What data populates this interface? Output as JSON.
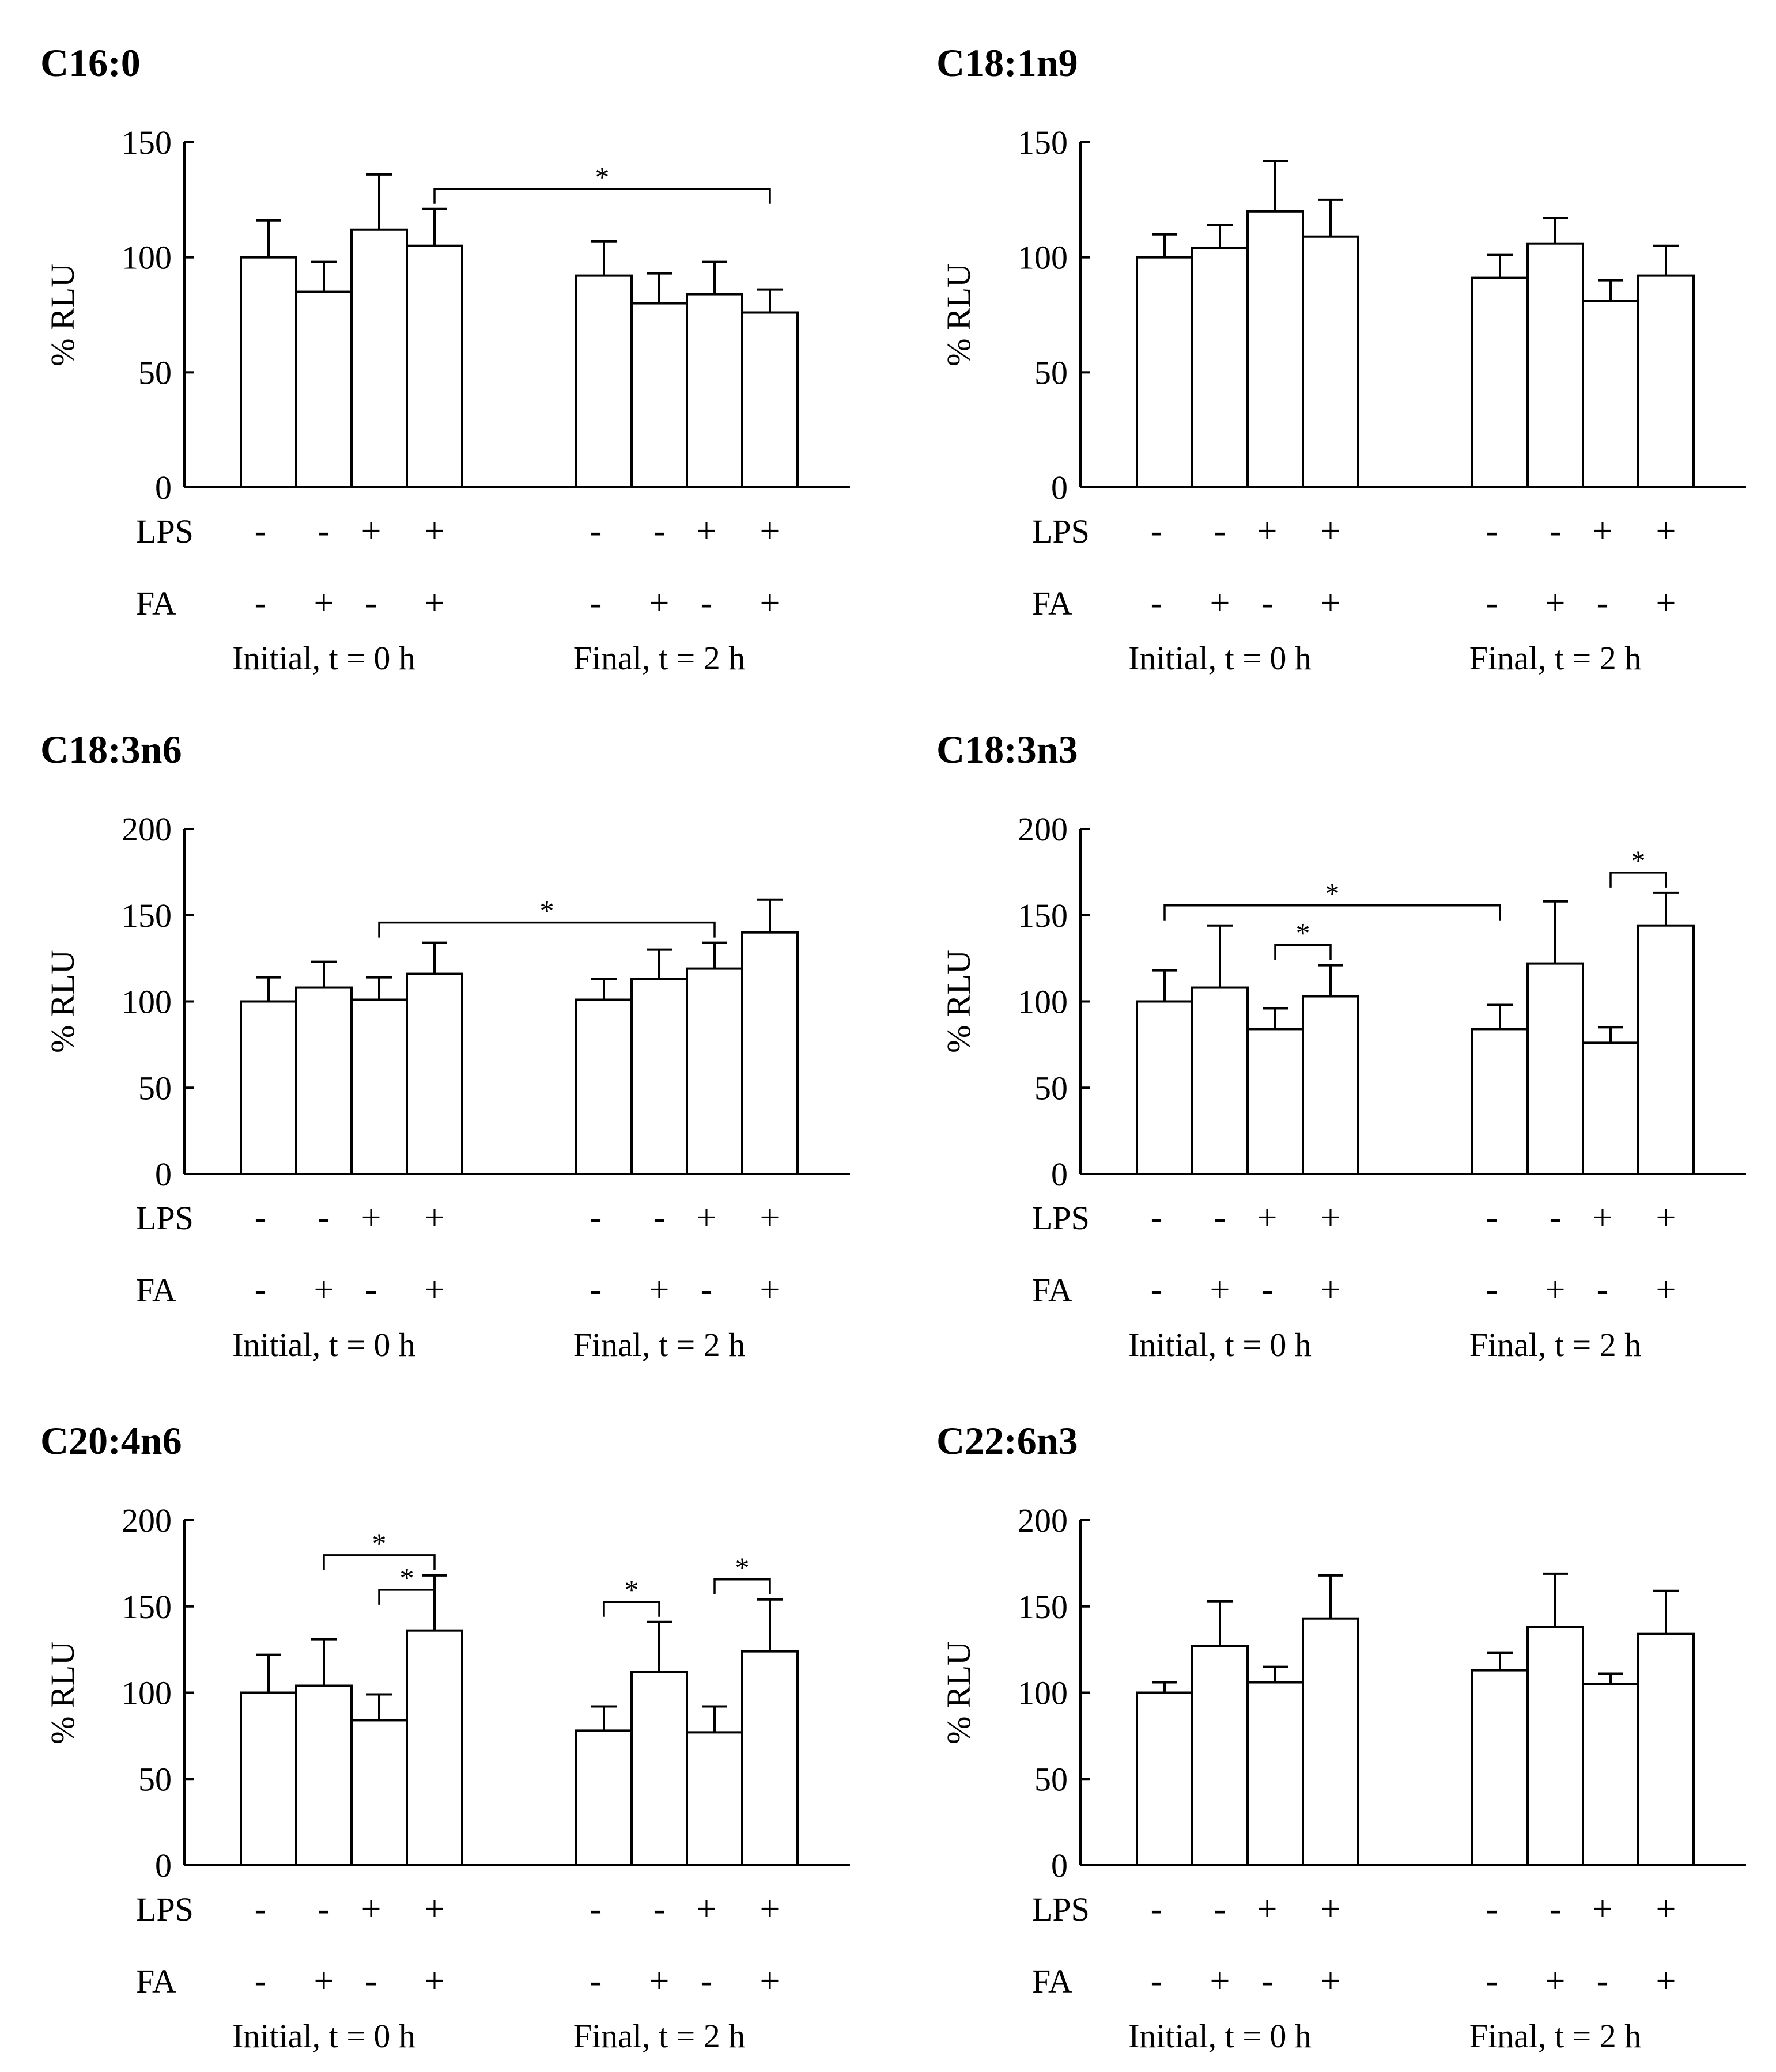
{
  "figure": {
    "row_labels": {
      "lps": "LPS",
      "fa": "FA"
    },
    "conditions": {
      "lps": [
        "-",
        "-",
        "+",
        "+",
        "-",
        "-",
        "+",
        "+"
      ],
      "fa": [
        "-",
        "+",
        "-",
        "+",
        "-",
        "+",
        "-",
        "+"
      ]
    },
    "groups": [
      "Initial, t = 0 h",
      "Final, t = 2 h"
    ]
  },
  "chart_data": [
    {
      "type": "bar",
      "title": "C16:0",
      "ylabel": "% RLU",
      "ylim": [
        0,
        150
      ],
      "yticks": [
        "0",
        "50",
        "100",
        "150"
      ],
      "values": [
        100,
        85,
        112,
        105,
        92,
        80,
        84,
        76
      ],
      "errors": [
        16,
        13,
        24,
        16,
        15,
        13,
        14,
        10
      ],
      "significance": [
        {
          "from": 3,
          "to": 7,
          "level": 0,
          "label": "*"
        }
      ]
    },
    {
      "type": "bar",
      "title": "C18:1n9",
      "ylabel": "% RLU",
      "ylim": [
        0,
        150
      ],
      "yticks": [
        "0",
        "50",
        "100",
        "150"
      ],
      "values": [
        100,
        104,
        120,
        109,
        91,
        106,
        81,
        92
      ],
      "errors": [
        10,
        10,
        22,
        16,
        10,
        11,
        9,
        13
      ],
      "significance": []
    },
    {
      "type": "bar",
      "title": "C18:3n6",
      "ylabel": "% RLU",
      "ylim": [
        0,
        200
      ],
      "yticks": [
        "0",
        "50",
        "100",
        "150",
        "200"
      ],
      "values": [
        100,
        108,
        101,
        116,
        101,
        113,
        119,
        140
      ],
      "errors": [
        14,
        15,
        13,
        18,
        12,
        17,
        15,
        19
      ],
      "significance": [
        {
          "from": 2,
          "to": 6,
          "level": 0,
          "label": "*"
        }
      ]
    },
    {
      "type": "bar",
      "title": "C18:3n3",
      "ylabel": "% RLU",
      "ylim": [
        0,
        200
      ],
      "yticks": [
        "0",
        "50",
        "100",
        "150",
        "200"
      ],
      "values": [
        100,
        108,
        84,
        103,
        84,
        122,
        76,
        144
      ],
      "errors": [
        18,
        36,
        12,
        18,
        14,
        36,
        9,
        19
      ],
      "significance": [
        {
          "from": 0,
          "to": 4,
          "level": 0,
          "label": "*"
        },
        {
          "from": 2,
          "to": 3,
          "level": 1,
          "label": "*"
        },
        {
          "from": 6,
          "to": 7,
          "level": 2,
          "label": "*"
        }
      ]
    },
    {
      "type": "bar",
      "title": "C20:4n6",
      "ylabel": "% RLU",
      "ylim": [
        0,
        200
      ],
      "yticks": [
        "0",
        "50",
        "100",
        "150",
        "200"
      ],
      "values": [
        100,
        104,
        84,
        136,
        78,
        112,
        77,
        124
      ],
      "errors": [
        22,
        27,
        15,
        32,
        14,
        29,
        15,
        30
      ],
      "significance": [
        {
          "from": 1,
          "to": 3,
          "level": 0,
          "label": "*"
        },
        {
          "from": 2,
          "to": 3,
          "level": 1,
          "label": "*"
        },
        {
          "from": 4,
          "to": 5,
          "level": 2,
          "label": "*"
        },
        {
          "from": 6,
          "to": 7,
          "level": 2,
          "label": "*"
        }
      ]
    },
    {
      "type": "bar",
      "title": "C22:6n3",
      "ylabel": "% RLU",
      "ylim": [
        0,
        200
      ],
      "yticks": [
        "0",
        "50",
        "100",
        "150",
        "200"
      ],
      "values": [
        100,
        127,
        106,
        143,
        113,
        138,
        105,
        134
      ],
      "errors": [
        6,
        26,
        9,
        25,
        10,
        31,
        6,
        25
      ],
      "significance": []
    }
  ]
}
